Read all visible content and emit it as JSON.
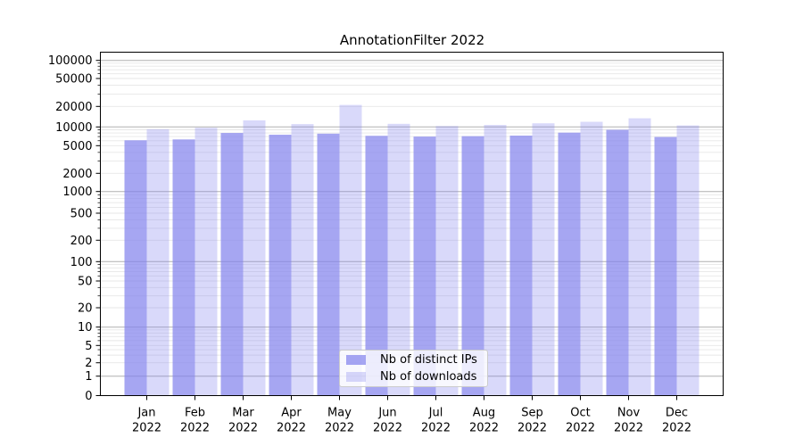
{
  "title": "AnnotationFilter 2022",
  "legend": {
    "items": [
      {
        "label": "Nb of distinct IPs",
        "color": "rgba(128,128,237,0.7)"
      },
      {
        "label": "Nb of downloads",
        "color": "rgba(128,128,237,0.3)"
      }
    ],
    "position": "lower center inside plot"
  },
  "colors": {
    "bar_distinct_ips": "rgba(128,128,237,0.7)",
    "bar_downloads": "rgba(128,128,237,0.3)",
    "grid_major": "#b0b0b0",
    "grid_minor": "#e7e7e7",
    "axis": "#000000",
    "text": "#000000",
    "legend_border": "#cccccc",
    "background": "#ffffff"
  },
  "chart_data": {
    "type": "bar",
    "title": "AnnotationFilter 2022",
    "xlabel": "",
    "ylabel": "",
    "categories": [
      "Jan 2022",
      "Feb 2022",
      "Mar 2022",
      "Apr 2022",
      "May 2022",
      "Jun 2022",
      "Jul 2022",
      "Aug 2022",
      "Sep 2022",
      "Oct 2022",
      "Nov 2022",
      "Dec 2022"
    ],
    "series": [
      {
        "name": "Nb of distinct IPs",
        "color": "rgba(128,128,237,0.7)",
        "values": [
          6100,
          6300,
          8000,
          7500,
          7800,
          7200,
          7000,
          7100,
          7250,
          8100,
          9000,
          6900
        ]
      },
      {
        "name": "Nb of downloads",
        "color": "rgba(128,128,237,0.3)",
        "values": [
          9200,
          9700,
          12500,
          11000,
          21000,
          11100,
          10300,
          10700,
          11300,
          11900,
          13400,
          10500
        ]
      }
    ],
    "yscale": "symlog",
    "ylim": [
      0,
      133000
    ],
    "ytick_values": [
      0,
      1,
      2,
      5,
      10,
      20,
      50,
      100,
      200,
      500,
      1000,
      2000,
      5000,
      10000,
      20000,
      50000,
      100000
    ],
    "ytick_labels": [
      "0",
      "1",
      "2",
      "5",
      "10",
      "20",
      "50",
      "100",
      "200",
      "500",
      "1000",
      "2000",
      "5000",
      "10000",
      "20000",
      "50000",
      "100000"
    ],
    "grid": "horizontal major (decades, darker) + minor (lighter)",
    "legend_position": "bottom center inside"
  }
}
